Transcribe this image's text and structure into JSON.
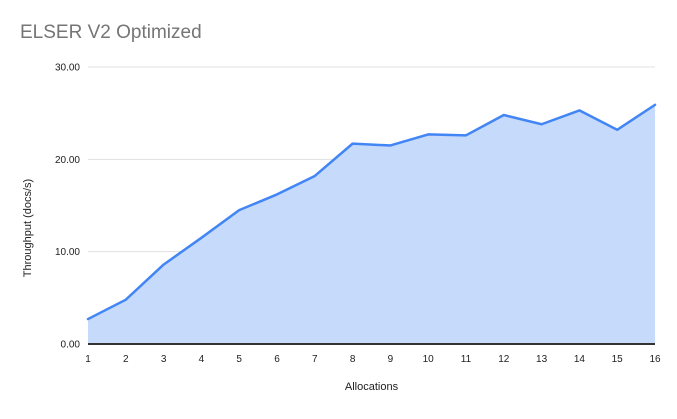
{
  "chart_data": {
    "type": "area",
    "title": "ELSER V2 Optimized",
    "xlabel": "Allocations",
    "ylabel": "Throughput (docs/s)",
    "x": [
      1,
      2,
      3,
      4,
      5,
      6,
      7,
      8,
      9,
      10,
      11,
      12,
      13,
      14,
      15,
      16
    ],
    "values": [
      2.7,
      4.8,
      8.6,
      11.5,
      14.5,
      16.2,
      18.2,
      21.7,
      21.5,
      22.7,
      22.6,
      24.8,
      23.8,
      25.3,
      23.2,
      25.9
    ],
    "ylim": [
      0,
      30
    ],
    "xlim": [
      1,
      16
    ],
    "ytick_labels": [
      "0.00",
      "10.00",
      "20.00",
      "30.00"
    ],
    "grid": true,
    "legend": "none",
    "colors": {
      "line": "#4285f4",
      "fill": "#c6dafc",
      "gridline": "#e0e0e0",
      "baseline": "#333333",
      "title_text": "#757575",
      "tick_text": "#212121"
    }
  }
}
